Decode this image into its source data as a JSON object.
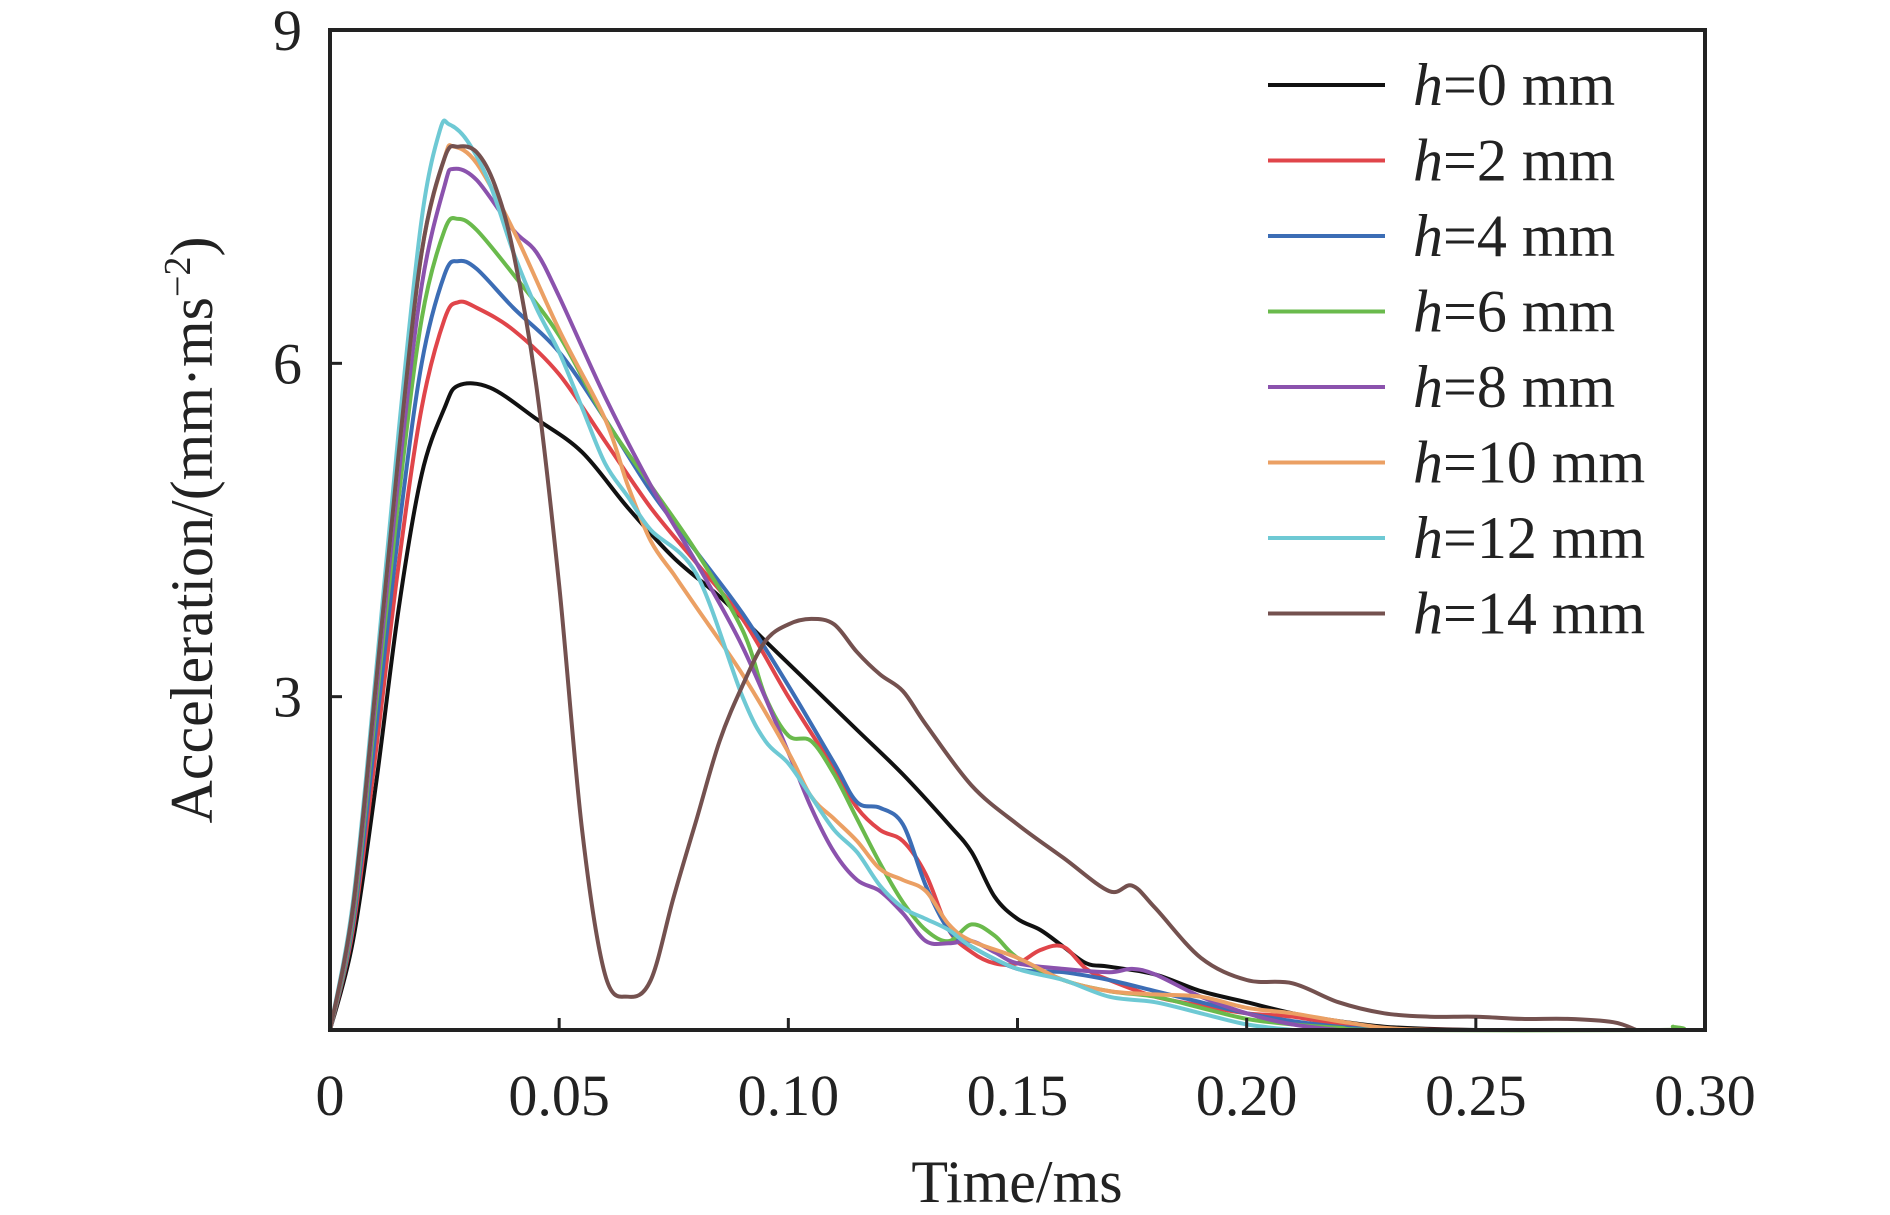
{
  "chart_data": {
    "type": "line",
    "xlabel": "Time/ms",
    "ylabel_prefix": "Acceleration/(mm·ms",
    "ylabel_sup": "−2",
    "ylabel_suffix": ")",
    "xlim": [
      0,
      0.3
    ],
    "ylim": [
      0,
      9
    ],
    "x_ticks": [
      0,
      0.05,
      0.1,
      0.15,
      0.2,
      0.25,
      0.3
    ],
    "x_tick_labels": [
      "0",
      "0.05",
      "0.10",
      "0.15",
      "0.20",
      "0.25",
      "0.30"
    ],
    "y_ticks": [
      3,
      6,
      9
    ],
    "y_tick_labels": [
      "3",
      "6",
      "9"
    ],
    "grid": false,
    "legend_position": "top-right",
    "series": [
      {
        "name_italic": "h",
        "name_rest": "=0 mm",
        "color": "#111111",
        "points": [
          [
            0,
            0
          ],
          [
            0.005,
            0.8
          ],
          [
            0.01,
            2.2
          ],
          [
            0.015,
            3.8
          ],
          [
            0.02,
            5.0
          ],
          [
            0.025,
            5.6
          ],
          [
            0.028,
            5.8
          ],
          [
            0.035,
            5.78
          ],
          [
            0.045,
            5.5
          ],
          [
            0.055,
            5.2
          ],
          [
            0.065,
            4.7
          ],
          [
            0.075,
            4.25
          ],
          [
            0.085,
            3.9
          ],
          [
            0.095,
            3.5
          ],
          [
            0.105,
            3.1
          ],
          [
            0.115,
            2.7
          ],
          [
            0.125,
            2.3
          ],
          [
            0.135,
            1.85
          ],
          [
            0.14,
            1.6
          ],
          [
            0.145,
            1.2
          ],
          [
            0.15,
            1.0
          ],
          [
            0.155,
            0.9
          ],
          [
            0.16,
            0.75
          ],
          [
            0.165,
            0.6
          ],
          [
            0.17,
            0.57
          ],
          [
            0.18,
            0.5
          ],
          [
            0.19,
            0.35
          ],
          [
            0.2,
            0.25
          ],
          [
            0.21,
            0.15
          ],
          [
            0.22,
            0.08
          ],
          [
            0.23,
            0.03
          ],
          [
            0.24,
            0.01
          ],
          [
            0.25,
            0
          ]
        ]
      },
      {
        "name_italic": "h",
        "name_rest": "=2 mm",
        "color": "#e0454a",
        "points": [
          [
            0,
            0
          ],
          [
            0.005,
            0.9
          ],
          [
            0.01,
            2.5
          ],
          [
            0.015,
            4.2
          ],
          [
            0.02,
            5.6
          ],
          [
            0.025,
            6.4
          ],
          [
            0.028,
            6.55
          ],
          [
            0.032,
            6.5
          ],
          [
            0.04,
            6.3
          ],
          [
            0.05,
            5.9
          ],
          [
            0.06,
            5.3
          ],
          [
            0.07,
            4.7
          ],
          [
            0.08,
            4.2
          ],
          [
            0.09,
            3.7
          ],
          [
            0.1,
            3.0
          ],
          [
            0.11,
            2.35
          ],
          [
            0.115,
            2.0
          ],
          [
            0.12,
            1.8
          ],
          [
            0.125,
            1.7
          ],
          [
            0.13,
            1.4
          ],
          [
            0.135,
            0.9
          ],
          [
            0.14,
            0.7
          ],
          [
            0.145,
            0.6
          ],
          [
            0.15,
            0.6
          ],
          [
            0.155,
            0.72
          ],
          [
            0.16,
            0.75
          ],
          [
            0.165,
            0.55
          ],
          [
            0.17,
            0.45
          ],
          [
            0.18,
            0.3
          ],
          [
            0.19,
            0.22
          ],
          [
            0.2,
            0.15
          ],
          [
            0.21,
            0.12
          ],
          [
            0.22,
            0.05
          ],
          [
            0.23,
            0.01
          ],
          [
            0.25,
            0
          ]
        ]
      },
      {
        "name_italic": "h",
        "name_rest": "=4 mm",
        "color": "#3c6db5",
        "points": [
          [
            0,
            0
          ],
          [
            0.005,
            0.95
          ],
          [
            0.01,
            2.7
          ],
          [
            0.015,
            4.5
          ],
          [
            0.02,
            6.0
          ],
          [
            0.025,
            6.8
          ],
          [
            0.028,
            6.92
          ],
          [
            0.032,
            6.85
          ],
          [
            0.04,
            6.5
          ],
          [
            0.05,
            6.1
          ],
          [
            0.06,
            5.5
          ],
          [
            0.07,
            4.85
          ],
          [
            0.08,
            4.3
          ],
          [
            0.09,
            3.75
          ],
          [
            0.1,
            3.1
          ],
          [
            0.11,
            2.4
          ],
          [
            0.115,
            2.05
          ],
          [
            0.12,
            2.0
          ],
          [
            0.125,
            1.85
          ],
          [
            0.13,
            1.3
          ],
          [
            0.135,
            0.9
          ],
          [
            0.14,
            0.75
          ],
          [
            0.15,
            0.55
          ],
          [
            0.16,
            0.52
          ],
          [
            0.17,
            0.45
          ],
          [
            0.18,
            0.35
          ],
          [
            0.19,
            0.25
          ],
          [
            0.2,
            0.15
          ],
          [
            0.21,
            0.08
          ],
          [
            0.22,
            0.03
          ],
          [
            0.23,
            0
          ]
        ]
      },
      {
        "name_italic": "h",
        "name_rest": "=6 mm",
        "color": "#6aba4c",
        "points": [
          [
            0,
            0
          ],
          [
            0.005,
            1.0
          ],
          [
            0.01,
            2.9
          ],
          [
            0.015,
            4.8
          ],
          [
            0.02,
            6.4
          ],
          [
            0.025,
            7.2
          ],
          [
            0.028,
            7.3
          ],
          [
            0.032,
            7.2
          ],
          [
            0.04,
            6.8
          ],
          [
            0.05,
            6.25
          ],
          [
            0.06,
            5.5
          ],
          [
            0.07,
            4.9
          ],
          [
            0.08,
            4.3
          ],
          [
            0.09,
            3.6
          ],
          [
            0.095,
            3.0
          ],
          [
            0.1,
            2.65
          ],
          [
            0.105,
            2.6
          ],
          [
            0.11,
            2.3
          ],
          [
            0.115,
            1.9
          ],
          [
            0.12,
            1.5
          ],
          [
            0.125,
            1.15
          ],
          [
            0.13,
            0.9
          ],
          [
            0.135,
            0.8
          ],
          [
            0.14,
            0.95
          ],
          [
            0.145,
            0.85
          ],
          [
            0.15,
            0.65
          ],
          [
            0.16,
            0.45
          ],
          [
            0.17,
            0.35
          ],
          [
            0.18,
            0.3
          ],
          [
            0.19,
            0.2
          ],
          [
            0.2,
            0.1
          ],
          [
            0.21,
            0.05
          ],
          [
            0.22,
            0.02
          ],
          [
            0.23,
            0
          ],
          [
            0.29,
            0
          ],
          [
            0.293,
            0.03
          ]
        ]
      },
      {
        "name_italic": "h",
        "name_rest": "=8 mm",
        "color": "#8b52ad",
        "points": [
          [
            0,
            0
          ],
          [
            0.005,
            1.05
          ],
          [
            0.01,
            3.0
          ],
          [
            0.015,
            5.0
          ],
          [
            0.02,
            6.7
          ],
          [
            0.025,
            7.6
          ],
          [
            0.027,
            7.75
          ],
          [
            0.032,
            7.65
          ],
          [
            0.04,
            7.2
          ],
          [
            0.045,
            7.0
          ],
          [
            0.05,
            6.6
          ],
          [
            0.06,
            5.7
          ],
          [
            0.07,
            4.9
          ],
          [
            0.08,
            4.2
          ],
          [
            0.09,
            3.45
          ],
          [
            0.1,
            2.5
          ],
          [
            0.105,
            2.0
          ],
          [
            0.11,
            1.6
          ],
          [
            0.115,
            1.35
          ],
          [
            0.12,
            1.25
          ],
          [
            0.125,
            1.05
          ],
          [
            0.13,
            0.8
          ],
          [
            0.135,
            0.78
          ],
          [
            0.14,
            0.8
          ],
          [
            0.145,
            0.7
          ],
          [
            0.15,
            0.6
          ],
          [
            0.16,
            0.55
          ],
          [
            0.17,
            0.52
          ],
          [
            0.175,
            0.55
          ],
          [
            0.18,
            0.5
          ],
          [
            0.19,
            0.3
          ],
          [
            0.2,
            0.15
          ],
          [
            0.21,
            0.05
          ],
          [
            0.22,
            0
          ]
        ]
      },
      {
        "name_italic": "h",
        "name_rest": "=10 mm",
        "color": "#eba064",
        "points": [
          [
            0,
            0
          ],
          [
            0.005,
            1.1
          ],
          [
            0.01,
            3.1
          ],
          [
            0.015,
            5.2
          ],
          [
            0.02,
            7.0
          ],
          [
            0.025,
            7.85
          ],
          [
            0.027,
            7.95
          ],
          [
            0.032,
            7.8
          ],
          [
            0.04,
            7.2
          ],
          [
            0.05,
            6.3
          ],
          [
            0.06,
            5.5
          ],
          [
            0.065,
            4.9
          ],
          [
            0.07,
            4.4
          ],
          [
            0.075,
            4.1
          ],
          [
            0.08,
            3.8
          ],
          [
            0.09,
            3.2
          ],
          [
            0.1,
            2.5
          ],
          [
            0.105,
            2.1
          ],
          [
            0.11,
            1.9
          ],
          [
            0.115,
            1.7
          ],
          [
            0.12,
            1.45
          ],
          [
            0.125,
            1.35
          ],
          [
            0.13,
            1.25
          ],
          [
            0.135,
            0.95
          ],
          [
            0.14,
            0.8
          ],
          [
            0.15,
            0.65
          ],
          [
            0.16,
            0.45
          ],
          [
            0.17,
            0.35
          ],
          [
            0.18,
            0.32
          ],
          [
            0.19,
            0.3
          ],
          [
            0.2,
            0.2
          ],
          [
            0.21,
            0.15
          ],
          [
            0.22,
            0.08
          ],
          [
            0.23,
            0.02
          ],
          [
            0.24,
            0
          ]
        ]
      },
      {
        "name_italic": "h",
        "name_rest": "=12 mm",
        "color": "#6ec9d4",
        "points": [
          [
            0,
            0
          ],
          [
            0.005,
            1.15
          ],
          [
            0.01,
            3.2
          ],
          [
            0.015,
            5.4
          ],
          [
            0.02,
            7.3
          ],
          [
            0.024,
            8.1
          ],
          [
            0.026,
            8.15
          ],
          [
            0.03,
            8.0
          ],
          [
            0.035,
            7.6
          ],
          [
            0.04,
            7.0
          ],
          [
            0.045,
            6.5
          ],
          [
            0.05,
            6.1
          ],
          [
            0.055,
            5.6
          ],
          [
            0.06,
            5.1
          ],
          [
            0.065,
            4.8
          ],
          [
            0.07,
            4.5
          ],
          [
            0.08,
            4.1
          ],
          [
            0.09,
            3.0
          ],
          [
            0.095,
            2.6
          ],
          [
            0.1,
            2.4
          ],
          [
            0.105,
            2.1
          ],
          [
            0.11,
            1.8
          ],
          [
            0.115,
            1.6
          ],
          [
            0.12,
            1.3
          ],
          [
            0.125,
            1.1
          ],
          [
            0.13,
            1.0
          ],
          [
            0.135,
            0.9
          ],
          [
            0.14,
            0.75
          ],
          [
            0.15,
            0.55
          ],
          [
            0.16,
            0.45
          ],
          [
            0.17,
            0.3
          ],
          [
            0.18,
            0.25
          ],
          [
            0.19,
            0.15
          ],
          [
            0.2,
            0.05
          ],
          [
            0.21,
            0
          ]
        ]
      },
      {
        "name_italic": "h",
        "name_rest": "=14 mm",
        "color": "#74514f",
        "points": [
          [
            0,
            0
          ],
          [
            0.005,
            1.1
          ],
          [
            0.01,
            3.1
          ],
          [
            0.015,
            5.2
          ],
          [
            0.02,
            7.0
          ],
          [
            0.025,
            7.85
          ],
          [
            0.028,
            7.95
          ],
          [
            0.032,
            7.9
          ],
          [
            0.036,
            7.6
          ],
          [
            0.04,
            7.0
          ],
          [
            0.045,
            5.8
          ],
          [
            0.05,
            4.0
          ],
          [
            0.055,
            1.8
          ],
          [
            0.06,
            0.5
          ],
          [
            0.065,
            0.3
          ],
          [
            0.07,
            0.45
          ],
          [
            0.075,
            1.2
          ],
          [
            0.08,
            1.9
          ],
          [
            0.085,
            2.6
          ],
          [
            0.09,
            3.1
          ],
          [
            0.095,
            3.5
          ],
          [
            0.1,
            3.65
          ],
          [
            0.105,
            3.7
          ],
          [
            0.11,
            3.65
          ],
          [
            0.115,
            3.4
          ],
          [
            0.12,
            3.2
          ],
          [
            0.125,
            3.05
          ],
          [
            0.13,
            2.75
          ],
          [
            0.14,
            2.2
          ],
          [
            0.15,
            1.85
          ],
          [
            0.16,
            1.55
          ],
          [
            0.17,
            1.25
          ],
          [
            0.175,
            1.3
          ],
          [
            0.18,
            1.1
          ],
          [
            0.19,
            0.65
          ],
          [
            0.2,
            0.45
          ],
          [
            0.21,
            0.42
          ],
          [
            0.22,
            0.25
          ],
          [
            0.23,
            0.15
          ],
          [
            0.24,
            0.12
          ],
          [
            0.25,
            0.12
          ],
          [
            0.26,
            0.1
          ],
          [
            0.27,
            0.1
          ],
          [
            0.28,
            0.07
          ],
          [
            0.285,
            0
          ]
        ]
      }
    ]
  }
}
